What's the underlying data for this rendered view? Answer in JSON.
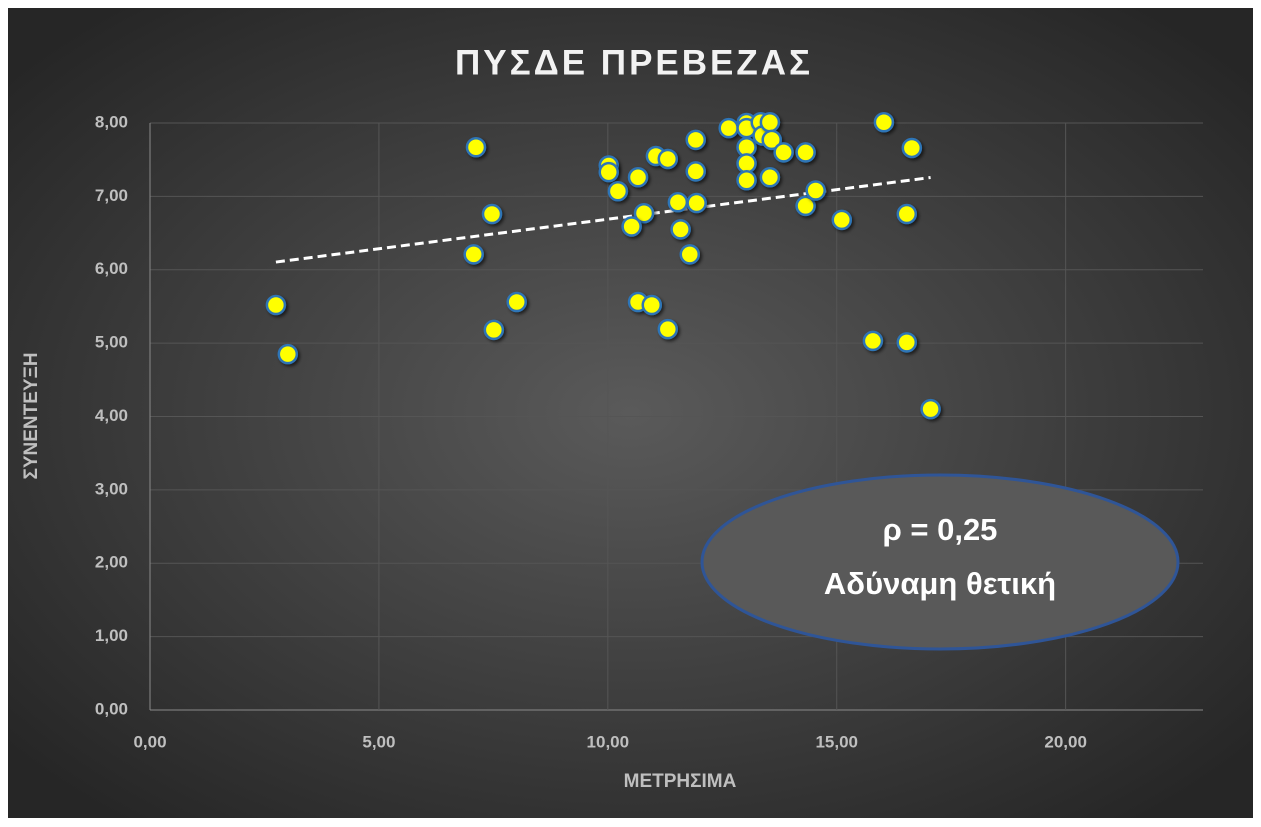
{
  "chart_data": {
    "type": "scatter",
    "title": "ΠΥΣΔΕ ΠΡΕΒΕΖΑΣ",
    "x_label": "ΜΕΤΡΗΣΙΜΑ",
    "y_label": "ΣΥΝΕΝΤΕΥΞΗ",
    "annotations": [
      "ρ = 0,25",
      "Αδύναμη θετική"
    ],
    "trendline": "linear",
    "grid": true,
    "xlim": [
      0,
      23
    ],
    "ylim": [
      0,
      8
    ],
    "xticks": [
      {
        "value": 0,
        "label": "0,00"
      },
      {
        "value": 5,
        "label": "5,00"
      },
      {
        "value": 10,
        "label": "10,00"
      },
      {
        "value": 15,
        "label": "15,00"
      },
      {
        "value": 20,
        "label": "20,00"
      }
    ],
    "yticks": [
      {
        "value": 0,
        "label": "0,00"
      },
      {
        "value": 1,
        "label": "1,00"
      },
      {
        "value": 2,
        "label": "2,00"
      },
      {
        "value": 3,
        "label": "3,00"
      },
      {
        "value": 4,
        "label": "4,00"
      },
      {
        "value": 5,
        "label": "5,00"
      },
      {
        "value": 6,
        "label": "6,00"
      },
      {
        "value": 7,
        "label": "7,00"
      },
      {
        "value": 8,
        "label": "8,00"
      }
    ],
    "series": [
      {
        "color": "#ffff00",
        "x": [
          2.75,
          3.01,
          7.12,
          7.07,
          7.47,
          7.51,
          8.01,
          10.02,
          10.02,
          10.22,
          10.66,
          10.79,
          10.52,
          10.66,
          10.96,
          11.05,
          11.31,
          11.31,
          11.53,
          11.59,
          11.79,
          11.92,
          11.92,
          11.94,
          12.64,
          13.03,
          13.03,
          13.03,
          13.03,
          13.03,
          13.34,
          13.38,
          13.54,
          13.58,
          13.84,
          13.54,
          14.32,
          14.32,
          14.54,
          15.11,
          16.03,
          16.64,
          16.53,
          15.79,
          16.53,
          17.05
        ],
        "values": [
          5.52,
          4.85,
          7.67,
          6.21,
          6.76,
          5.18,
          5.56,
          7.42,
          7.33,
          7.07,
          7.26,
          6.77,
          6.59,
          5.56,
          5.52,
          7.55,
          7.51,
          5.19,
          6.92,
          6.55,
          6.21,
          7.77,
          7.34,
          6.91,
          7.93,
          8.0,
          7.93,
          7.67,
          7.45,
          7.22,
          8.01,
          7.83,
          8.01,
          7.77,
          7.6,
          7.26,
          7.6,
          6.87,
          7.08,
          6.68,
          8.01,
          7.66,
          6.76,
          5.03,
          5.01,
          4.1
        ]
      }
    ]
  }
}
